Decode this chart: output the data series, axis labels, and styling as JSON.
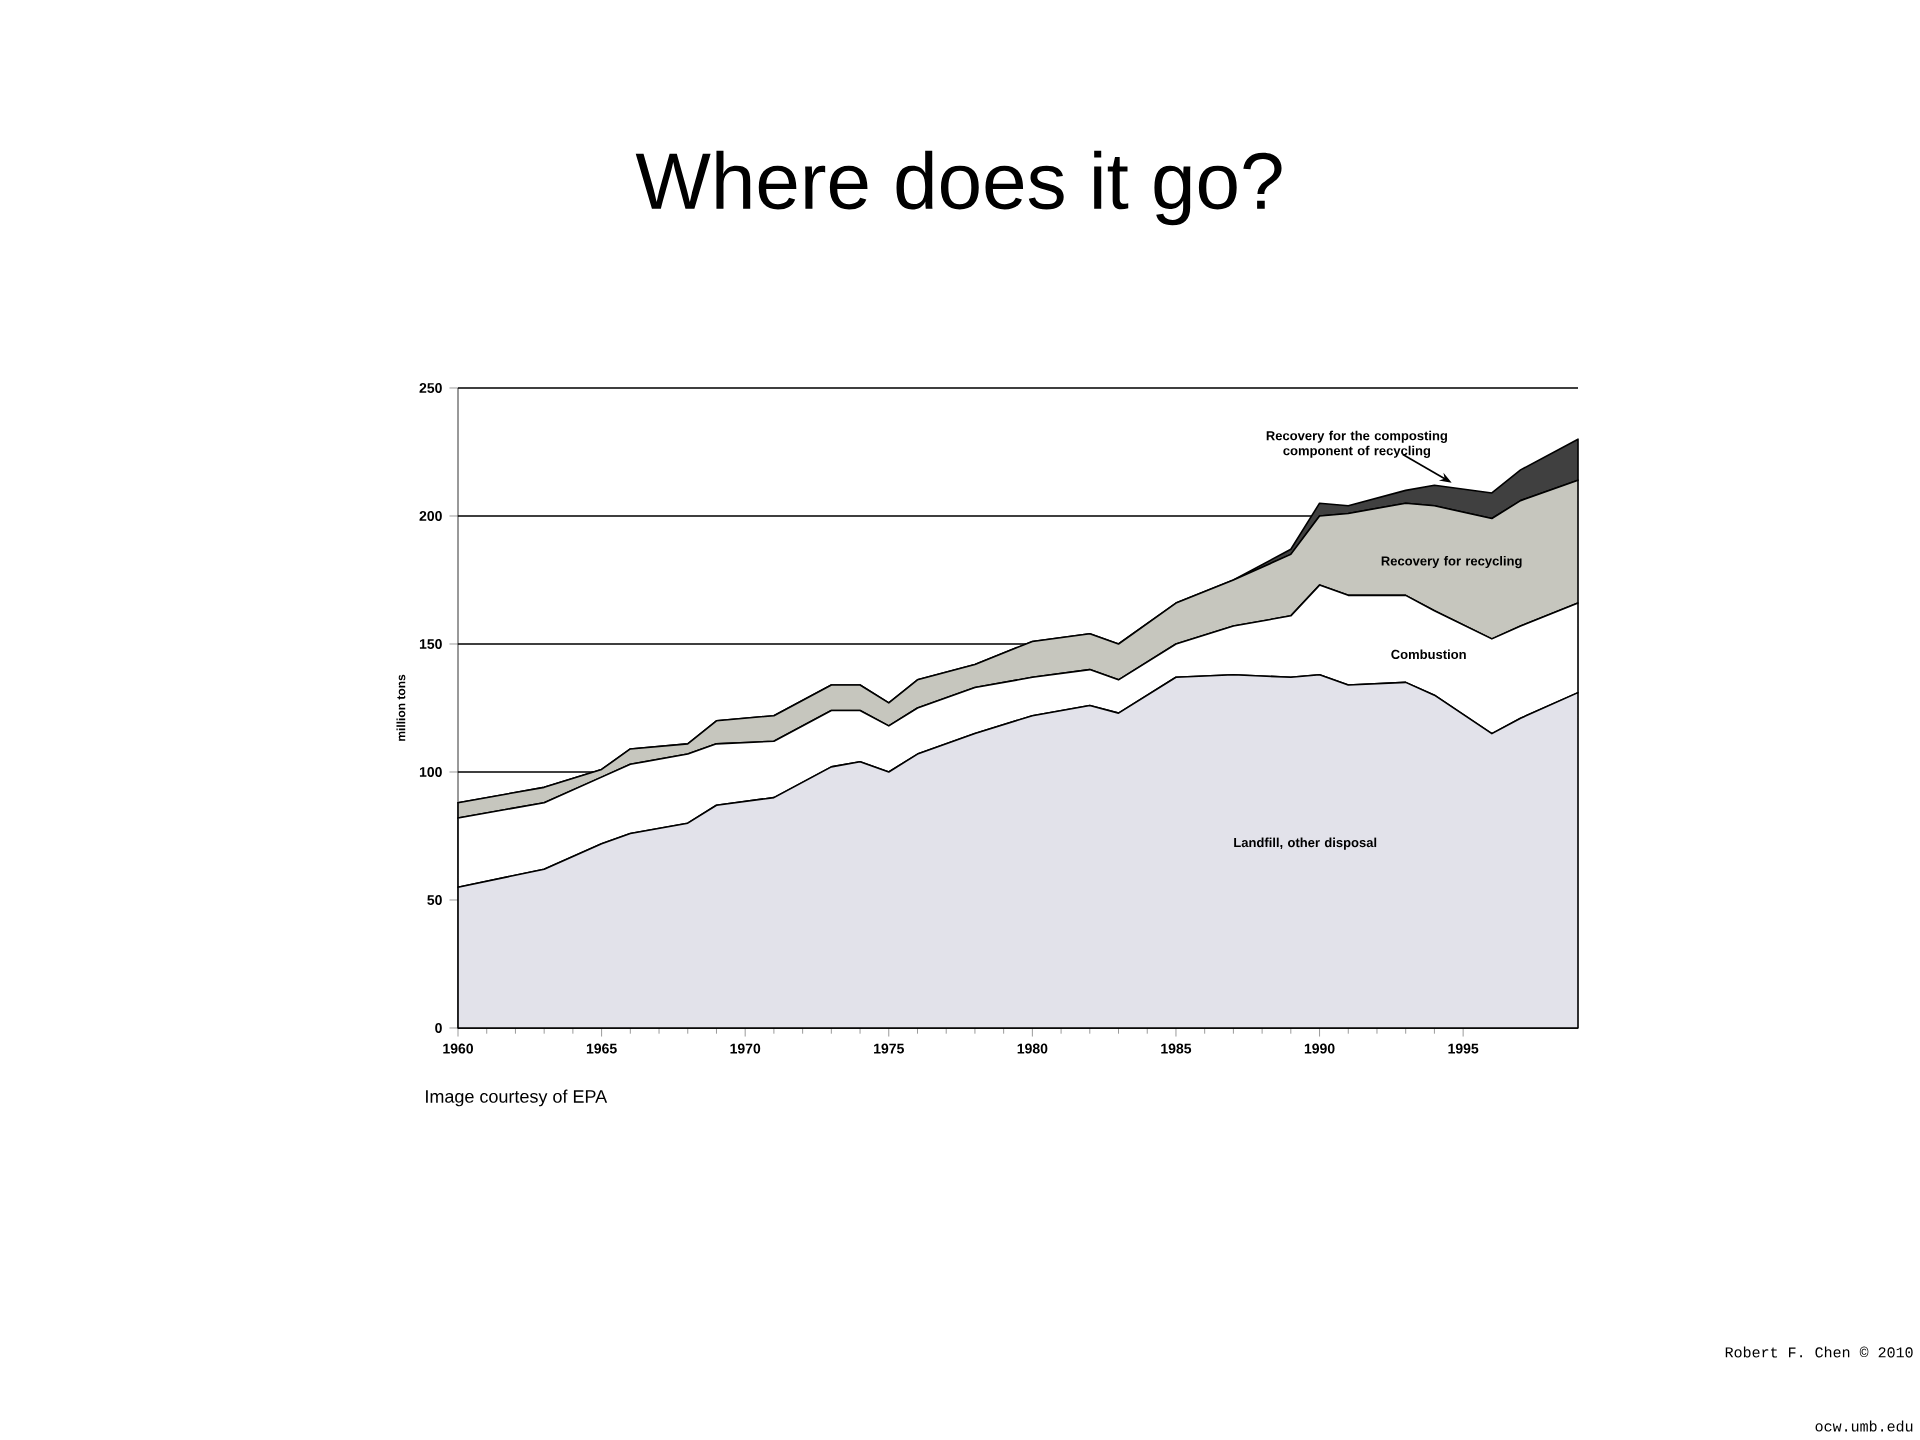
{
  "chart_data": {
    "type": "area",
    "stacked": true,
    "title": "Where does it go?",
    "ylabel": "million tons",
    "x": [
      1960,
      1963,
      1965,
      1966,
      1968,
      1969,
      1971,
      1973,
      1974,
      1975,
      1976,
      1978,
      1980,
      1982,
      1983,
      1985,
      1987,
      1989,
      1990,
      1991,
      1993,
      1994,
      1996,
      1997,
      1999
    ],
    "series": [
      {
        "name": "Landfill, other disposal",
        "color": "#e2e2ea",
        "values": [
          55,
          62,
          72,
          76,
          80,
          87,
          90,
          102,
          104,
          100,
          107,
          115,
          122,
          126,
          123,
          137,
          138,
          137,
          138,
          134,
          135,
          130,
          115,
          121,
          131
        ]
      },
      {
        "name": "Combustion",
        "color": "#ffffff",
        "values": [
          27,
          26,
          26,
          27,
          27,
          24,
          22,
          22,
          20,
          18,
          18,
          18,
          15,
          14,
          13,
          13,
          19,
          24,
          35,
          35,
          34,
          33,
          37,
          36,
          35
        ]
      },
      {
        "name": "Recovery for recycling",
        "color": "#c6c6be",
        "values": [
          6,
          6,
          3,
          6,
          4,
          9,
          10,
          10,
          10,
          9,
          11,
          9,
          14,
          14,
          14,
          16,
          18,
          24,
          27,
          32,
          36,
          41,
          47,
          49,
          48
        ]
      },
      {
        "name": "Recovery for the composting component of recycling",
        "color": "#404040",
        "values": [
          0,
          0,
          0,
          0,
          0,
          0,
          0,
          0,
          0,
          0,
          0,
          0,
          0,
          0,
          0,
          0,
          0,
          2,
          5,
          3,
          5,
          8,
          10,
          12,
          16
        ]
      }
    ],
    "xlim": [
      1960,
      1999
    ],
    "xticks": [
      1960,
      1965,
      1970,
      1975,
      1980,
      1985,
      1990,
      1995
    ],
    "ylim": [
      0,
      250
    ],
    "yticks": [
      0,
      50,
      100,
      150,
      200,
      250
    ],
    "grid": "y",
    "annotations": [
      "Image courtesy of EPA",
      "Robert F. Chen © 2010",
      "ocw.umb.edu"
    ]
  }
}
